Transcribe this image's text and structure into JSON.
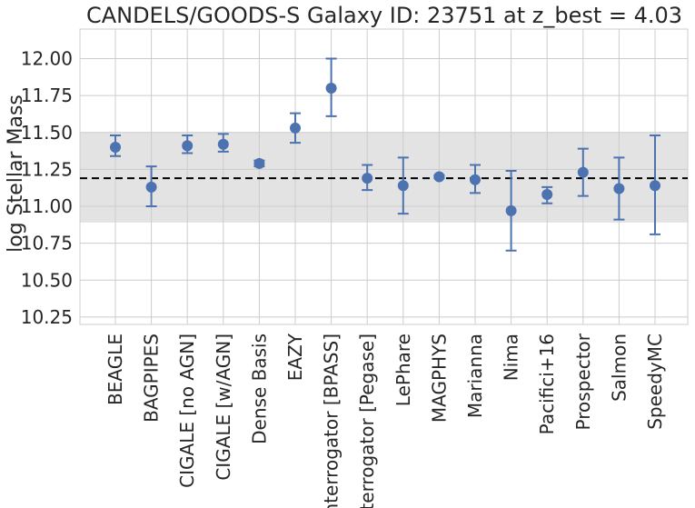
{
  "chart_data": {
    "type": "scatter",
    "title": "CANDELS/GOODS-S Galaxy ID: 23751 at z_best = 4.03",
    "xlabel": "",
    "ylabel": "log Stellar Mass",
    "ylim": [
      10.2,
      12.2
    ],
    "yticks": [
      "10.25",
      "10.50",
      "10.75",
      "11.00",
      "11.25",
      "11.50",
      "11.75",
      "12.00"
    ],
    "grid": true,
    "categories": [
      "BEAGLE",
      "BAGPIPES",
      "CIGALE [no AGN]",
      "CIGALE [w/AGN]",
      "Dense Basis",
      "EAZY",
      "Interrogator [BPASS]",
      "Interrogator [Pegase]",
      "LePhare",
      "MAGPHYS",
      "Marianna",
      "Nima",
      "Pacifici+16",
      "Prospector",
      "Salmon",
      "SpeedyMC"
    ],
    "series": [
      {
        "values": [
          11.4,
          11.13,
          11.41,
          11.42,
          11.29,
          11.53,
          11.8,
          11.19,
          11.14,
          11.2,
          11.18,
          10.97,
          11.08,
          11.23,
          11.12,
          11.14
        ],
        "err_low": [
          11.34,
          11.0,
          11.36,
          11.37,
          11.27,
          11.43,
          11.61,
          11.11,
          10.95,
          11.19,
          11.09,
          10.7,
          11.02,
          11.07,
          10.91,
          10.81
        ],
        "err_high": [
          11.48,
          11.27,
          11.48,
          11.49,
          11.31,
          11.63,
          12.0,
          11.28,
          11.33,
          11.21,
          11.28,
          11.24,
          11.13,
          11.39,
          11.33,
          11.48
        ]
      }
    ],
    "reference_line": 11.19,
    "band": [
      10.89,
      11.5
    ],
    "colors": {
      "points": "#4c72b0",
      "errorbars": "#4c72b0",
      "band": "#e3e3e3",
      "reference": "#000000",
      "grid": "#cccccc"
    }
  }
}
